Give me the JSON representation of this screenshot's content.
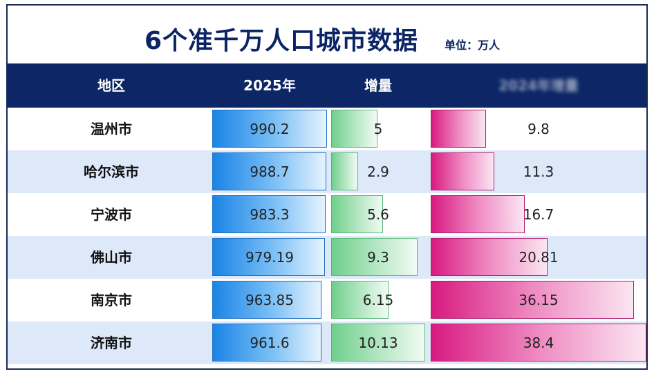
{
  "header": {
    "title": "6个准千万人口城市数据",
    "unit": "单位：万人",
    "columns": [
      "地区",
      "2025年",
      "增量",
      "2024年增量"
    ]
  },
  "colors": {
    "header_bg": "#0c2666",
    "title": "#0b2466",
    "alt_row": "#dde8f9",
    "pop_bar": "#1a84e6",
    "inc_bar": "#6fcf8c",
    "inc2_bar": "#d81a80"
  },
  "chart_data": {
    "type": "table",
    "categories": [
      "温州市",
      "哈尔滨市",
      "宁波市",
      "佛山市",
      "南京市",
      "济南市"
    ],
    "series": [
      {
        "name": "2025年",
        "values": [
          990.2,
          988.7,
          983.3,
          979.19,
          963.85,
          961.6
        ]
      },
      {
        "name": "增量",
        "values": [
          5,
          2.9,
          5.6,
          9.3,
          6.15,
          10.13
        ]
      },
      {
        "values": [
          9.8,
          11.3,
          16.7,
          20.81,
          36.15,
          38.4
        ]
      }
    ]
  }
}
